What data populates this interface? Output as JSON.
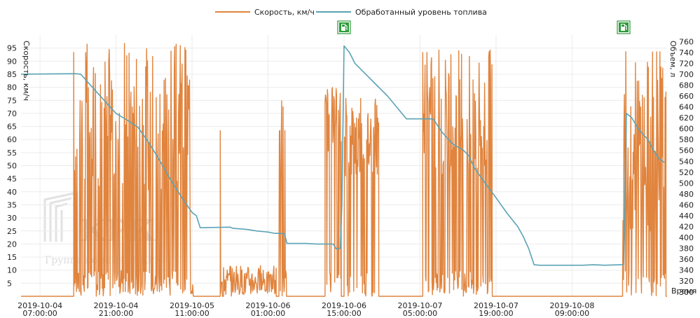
{
  "legend": {
    "speed": "Скорость, км/ч",
    "fuel": "Обработанный уровень топлива"
  },
  "watermark": {
    "logo": "КРК",
    "company": "Группа компаний КРК"
  },
  "icons": {
    "refuel": "fuel-pump-icon"
  },
  "colors": {
    "speed": "#E0843E",
    "fuel": "#5BA3B5",
    "grid": "#ececec",
    "refuel": "#2e9a3a"
  },
  "chart_data": {
    "type": "line",
    "title": "",
    "xlabel": "Время",
    "ylabel_left": "Скорость, км/ч",
    "ylabel_right": "Объем, л",
    "x_ticks": [
      [
        "2019-10-04",
        "07:00:00"
      ],
      [
        "2019-10-04",
        "21:00:00"
      ],
      [
        "2019-10-05",
        "11:00:00"
      ],
      [
        "2019-10-06",
        "01:00:00"
      ],
      [
        "2019-10-06",
        "15:00:00"
      ],
      [
        "2019-10-07",
        "05:00:00"
      ],
      [
        "2019-10-07",
        "19:00:00"
      ],
      [
        "2019-10-08",
        "09:00:00"
      ]
    ],
    "x_tick_hours": [
      0,
      14,
      28,
      42,
      56,
      70,
      84,
      98
    ],
    "xlim_hours": [
      -3.5,
      115.5
    ],
    "x_origin": "2019-10-04 07:00:00",
    "y_left": {
      "min": 0,
      "max": 100,
      "ticks": [
        5,
        10,
        15,
        20,
        25,
        30,
        35,
        40,
        45,
        50,
        55,
        60,
        65,
        70,
        75,
        80,
        85,
        90,
        95
      ]
    },
    "y_right": {
      "min": 292,
      "max": 772,
      "ticks": [
        300,
        320,
        340,
        360,
        380,
        400,
        420,
        440,
        460,
        480,
        500,
        520,
        540,
        560,
        580,
        600,
        620,
        640,
        660,
        680,
        700,
        720,
        740,
        760
      ]
    },
    "grid": true,
    "legend_position": "top-center",
    "refuel_events_hours": [
      56,
      107.5
    ],
    "series": [
      {
        "name": "Обработанный уровень топлива",
        "axis": "right",
        "points": [
          [
            -3.5,
            700
          ],
          [
            6.5,
            701
          ],
          [
            7.5,
            700
          ],
          [
            10,
            672
          ],
          [
            12,
            650
          ],
          [
            14,
            628
          ],
          [
            16,
            616
          ],
          [
            18,
            603
          ],
          [
            20,
            575
          ],
          [
            22,
            542
          ],
          [
            24,
            507
          ],
          [
            26,
            475
          ],
          [
            28,
            446
          ],
          [
            28.8,
            440
          ],
          [
            29.5,
            418
          ],
          [
            35,
            419
          ],
          [
            35.5,
            417
          ],
          [
            38,
            415
          ],
          [
            40,
            412
          ],
          [
            42,
            410
          ],
          [
            43,
            408
          ],
          [
            45,
            407
          ],
          [
            45.5,
            389
          ],
          [
            49,
            389
          ],
          [
            51,
            388
          ],
          [
            54,
            388
          ],
          [
            54.6,
            379
          ],
          [
            55.3,
            380
          ],
          [
            55.6,
            460
          ],
          [
            56,
            752
          ],
          [
            57,
            740
          ],
          [
            58,
            720
          ],
          [
            60,
            700
          ],
          [
            62,
            680
          ],
          [
            64,
            660
          ],
          [
            66,
            636
          ],
          [
            67.5,
            618
          ],
          [
            70,
            618
          ],
          [
            72,
            618
          ],
          [
            72.5,
            617
          ],
          [
            74,
            594
          ],
          [
            76,
            572
          ],
          [
            78,
            560
          ],
          [
            79,
            550
          ],
          [
            80,
            528
          ],
          [
            82,
            500
          ],
          [
            84,
            473
          ],
          [
            86,
            445
          ],
          [
            88,
            420
          ],
          [
            89,
            402
          ],
          [
            90,
            380
          ],
          [
            91,
            350
          ],
          [
            92,
            349
          ],
          [
            94,
            349
          ],
          [
            96,
            349
          ],
          [
            98,
            349
          ],
          [
            100,
            349
          ],
          [
            102,
            350
          ],
          [
            104,
            349
          ],
          [
            107,
            350
          ],
          [
            107.5,
            350
          ],
          [
            108,
            628
          ],
          [
            109,
            620
          ],
          [
            110,
            603
          ],
          [
            111,
            590
          ],
          [
            112,
            580
          ],
          [
            113,
            560
          ],
          [
            114,
            545
          ],
          [
            115,
            538
          ]
        ]
      },
      {
        "name": "Скорость, км/ч",
        "axis": "left",
        "segments": [
          {
            "start": 6.2,
            "end": 28.3,
            "min": 40,
            "max": 98,
            "drop": 0.45
          },
          {
            "start": 33.2,
            "end": 33.6,
            "min": 60,
            "max": 87,
            "drop": 0.5
          },
          {
            "start": 33.8,
            "end": 43.5,
            "min": 1,
            "max": 12,
            "drop": 0.5
          },
          {
            "start": 44.0,
            "end": 45.4,
            "min": 40,
            "max": 82,
            "drop": 0.45
          },
          {
            "start": 52.5,
            "end": 55.5,
            "min": 55,
            "max": 80,
            "drop": 0.35
          },
          {
            "start": 56.0,
            "end": 62.4,
            "min": 45,
            "max": 77,
            "drop": 0.3
          },
          {
            "start": 70.5,
            "end": 83.3,
            "min": 45,
            "max": 95,
            "drop": 0.4
          },
          {
            "start": 107.3,
            "end": 115.3,
            "min": 25,
            "max": 95,
            "drop": 0.35
          }
        ]
      }
    ]
  }
}
